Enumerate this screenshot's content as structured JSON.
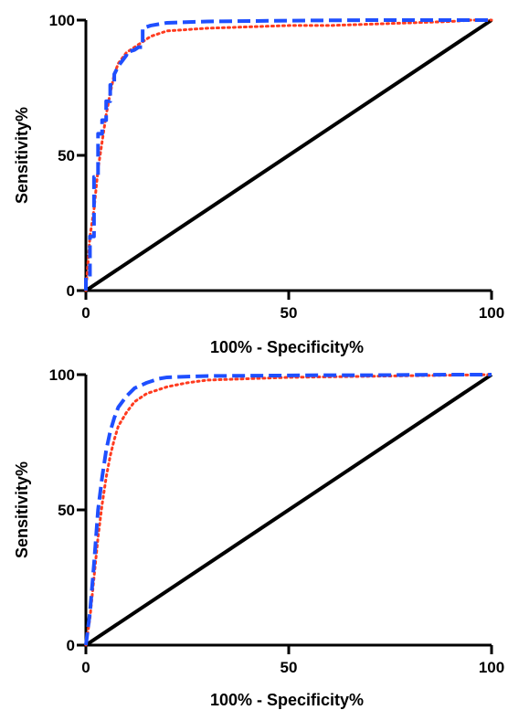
{
  "chart_data": [
    {
      "type": "line",
      "title": "",
      "xlabel": "100% - Specificity%",
      "ylabel": "Sensitivity%",
      "xlim": [
        0,
        100
      ],
      "ylim": [
        0,
        100
      ],
      "xticks": [
        0,
        50,
        100
      ],
      "yticks": [
        0,
        50,
        100
      ],
      "grid": false,
      "series": [
        {
          "color": "#000000",
          "style": "solid",
          "x": [
            0,
            100
          ],
          "y": [
            0,
            100
          ]
        },
        {
          "color": "#ff3b1f",
          "style": "dotted",
          "x": [
            0,
            0.5,
            1,
            2,
            3,
            4,
            5,
            6,
            7,
            8,
            9,
            10,
            12,
            14,
            16,
            18,
            20,
            25,
            30,
            40,
            50,
            60,
            70,
            80,
            90,
            95,
            100
          ],
          "y": [
            0,
            10,
            20,
            30,
            45,
            55,
            65,
            73,
            80,
            84,
            86,
            88,
            90,
            92,
            94,
            95,
            96,
            96.5,
            97,
            97.5,
            98,
            98,
            98.5,
            99,
            99.5,
            100,
            100
          ]
        },
        {
          "color": "#1f4fff",
          "style": "dashed",
          "x": [
            0,
            0,
            1,
            1,
            2,
            2,
            3,
            3,
            4,
            4,
            5,
            5,
            6,
            6,
            7,
            7,
            8,
            9,
            10,
            10,
            12,
            13,
            14,
            14,
            16,
            20,
            30,
            50,
            70,
            90,
            100
          ],
          "y": [
            0,
            5,
            5,
            20,
            20,
            42,
            42,
            58,
            58,
            63,
            63,
            70,
            70,
            76,
            76,
            80,
            83,
            85,
            87,
            88,
            89,
            90,
            90,
            97,
            98,
            99,
            99.5,
            99.8,
            100,
            100,
            100
          ]
        }
      ]
    },
    {
      "type": "line",
      "title": "",
      "xlabel": "100% - Specificity%",
      "ylabel": "Sensitivity%",
      "xlim": [
        0,
        100
      ],
      "ylim": [
        0,
        100
      ],
      "xticks": [
        0,
        50,
        100
      ],
      "yticks": [
        0,
        50,
        100
      ],
      "grid": false,
      "series": [
        {
          "color": "#000000",
          "style": "solid",
          "x": [
            0,
            100
          ],
          "y": [
            0,
            100
          ]
        },
        {
          "color": "#ff3b1f",
          "style": "dotted",
          "x": [
            0,
            1,
            2,
            3,
            4,
            5,
            6,
            7,
            8,
            10,
            12,
            15,
            20,
            25,
            30,
            40,
            50,
            60,
            70,
            80,
            90,
            100
          ],
          "y": [
            0,
            10,
            25,
            40,
            52,
            62,
            70,
            76,
            81,
            86,
            90,
            93,
            95.5,
            97,
            98,
            98.5,
            99,
            99.2,
            99.4,
            99.6,
            99.8,
            100
          ]
        },
        {
          "color": "#1f4fff",
          "style": "dashed",
          "x": [
            0,
            1,
            2,
            3,
            4,
            5,
            6,
            7,
            8,
            10,
            12,
            15,
            18,
            20,
            25,
            30,
            40,
            50,
            60,
            70,
            80,
            90,
            100
          ],
          "y": [
            0,
            12,
            30,
            50,
            62,
            72,
            79,
            84,
            88,
            92,
            95,
            97,
            98.5,
            99,
            99.3,
            99.5,
            99.6,
            99.7,
            99.8,
            99.8,
            99.9,
            100,
            100
          ]
        }
      ]
    }
  ]
}
